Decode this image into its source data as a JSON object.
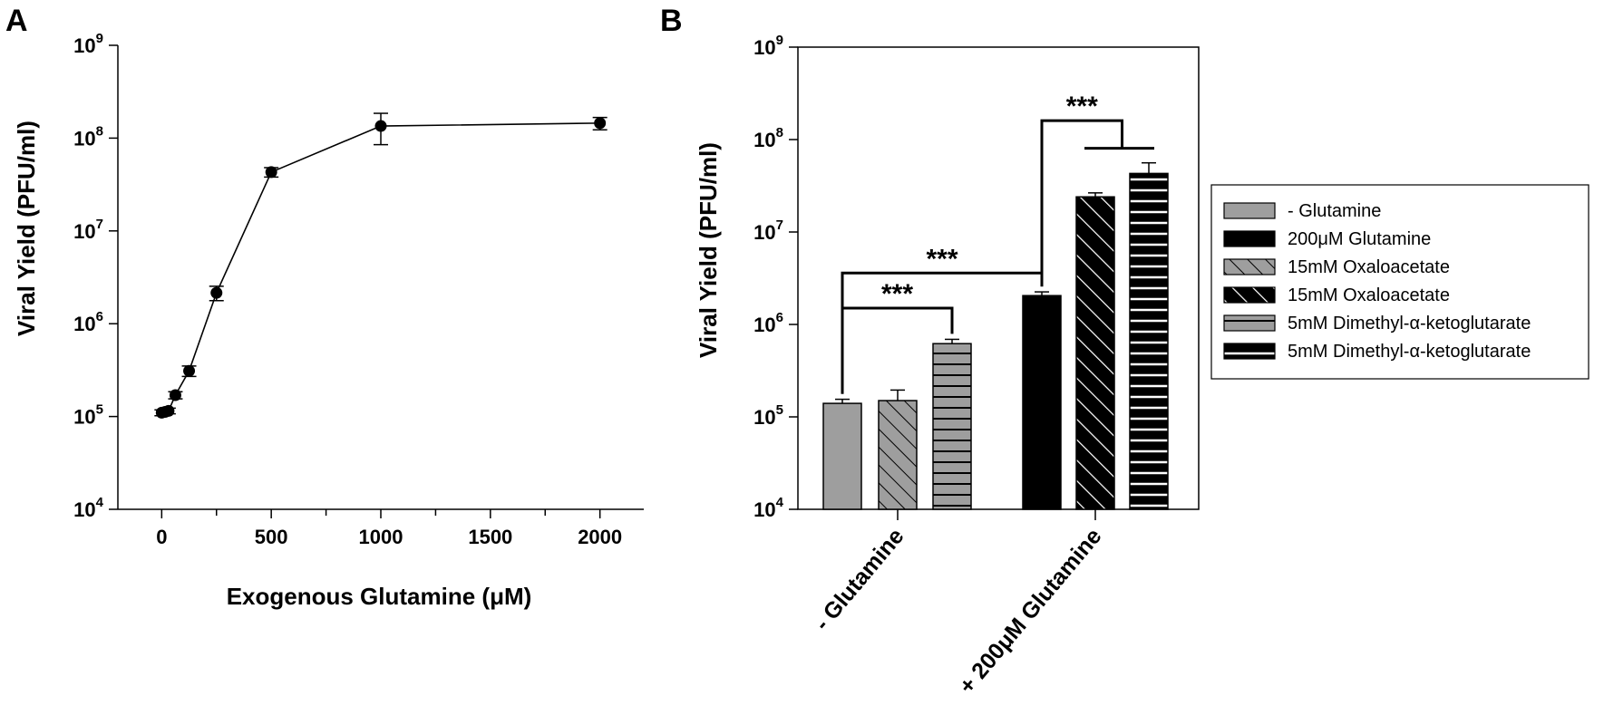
{
  "figure": {
    "panel_a_label": "A",
    "panel_b_label": "B"
  },
  "chart_data": [
    {
      "type": "scatter",
      "panel": "A",
      "xlabel": "Exogenous Glutamine (μM)",
      "ylabel": "Viral Yield (PFU/ml)",
      "xlim": [
        -200,
        2200
      ],
      "ylim": [
        10000,
        1000000000
      ],
      "yscale": "log",
      "x_ticks": [
        0,
        500,
        1000,
        1500,
        2000
      ],
      "y_ticks": [
        {
          "base": "10",
          "exp": "4",
          "value": 10000
        },
        {
          "base": "10",
          "exp": "5",
          "value": 100000
        },
        {
          "base": "10",
          "exp": "6",
          "value": 1000000
        },
        {
          "base": "10",
          "exp": "7",
          "value": 10000000
        },
        {
          "base": "10",
          "exp": "8",
          "value": 100000000
        },
        {
          "base": "10",
          "exp": "9",
          "value": 1000000000
        }
      ],
      "grid": false,
      "connected": true,
      "series": [
        {
          "x": [
            0,
            15.6,
            31.25,
            62.5,
            125,
            250,
            500,
            1000,
            2000
          ],
          "y": [
            110000,
            112000,
            115000,
            170000,
            310000,
            2150000,
            43000000,
            135000000,
            145000000
          ],
          "err_low": [
            8000,
            8000,
            8000,
            15000,
            40000,
            380000,
            5000000,
            50000000,
            22000000
          ],
          "err_high": [
            8000,
            8000,
            8000,
            15000,
            40000,
            380000,
            5000000,
            50000000,
            22000000
          ]
        }
      ]
    },
    {
      "type": "bar",
      "panel": "B",
      "ylabel": "Viral Yield (PFU/ml)",
      "ylim": [
        10000,
        1000000000
      ],
      "yscale": "log",
      "y_ticks": [
        {
          "base": "10",
          "exp": "4",
          "value": 10000
        },
        {
          "base": "10",
          "exp": "5",
          "value": 100000
        },
        {
          "base": "10",
          "exp": "6",
          "value": 1000000
        },
        {
          "base": "10",
          "exp": "7",
          "value": 10000000
        },
        {
          "base": "10",
          "exp": "8",
          "value": 100000000
        },
        {
          "base": "10",
          "exp": "9",
          "value": 1000000000
        }
      ],
      "categories": [
        "- Glutamine",
        "+ 200μM Glutamine"
      ],
      "grid": false,
      "legend_position": "right",
      "legend": [
        "- Glutamine",
        "200μM Glutamine",
        "15mM Oxaloacetate",
        "15mM Oxaloacetate",
        "5mM Dimethyl-α-ketoglutarate",
        "5mM Dimethyl-α-ketoglutarate"
      ],
      "bars": [
        {
          "category": 0,
          "legend_index": 0,
          "value": 140000,
          "err": 15000
        },
        {
          "category": 0,
          "legend_index": 2,
          "value": 150000,
          "err": 45000
        },
        {
          "category": 0,
          "legend_index": 4,
          "value": 620000,
          "err": 70000
        },
        {
          "category": 1,
          "legend_index": 1,
          "value": 2050000,
          "err": 200000
        },
        {
          "category": 1,
          "legend_index": 3,
          "value": 24000000,
          "err": 2500000
        },
        {
          "category": 1,
          "legend_index": 5,
          "value": 43000000,
          "err": 13000000
        }
      ],
      "significance": [
        {
          "label": "***",
          "from_bar": 0,
          "to_bar": 3,
          "level": 3600000
        },
        {
          "label": "***",
          "from_bar": 0,
          "to_bar": 2,
          "level": 1500000
        },
        {
          "label": "***",
          "from_bar": 3,
          "to_bars": [
            4,
            5
          ],
          "level": 160000000
        }
      ]
    }
  ]
}
